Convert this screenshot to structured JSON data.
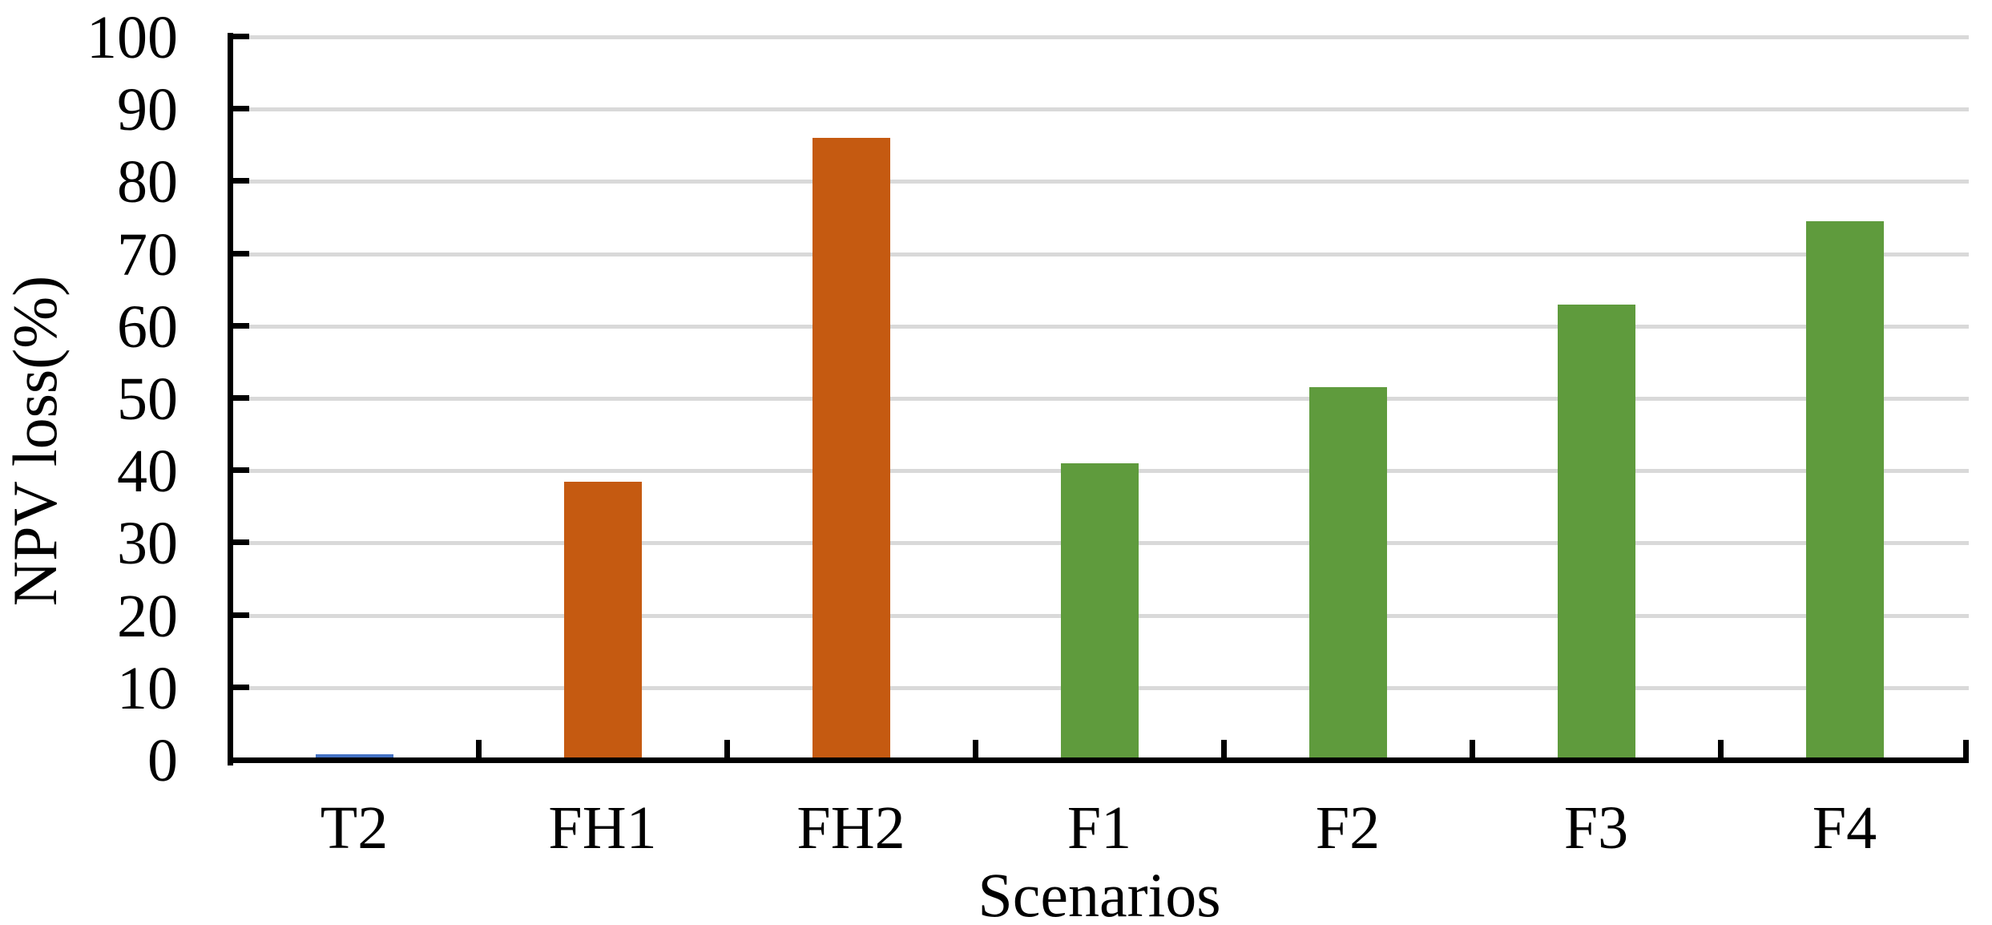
{
  "chart_data": {
    "type": "bar",
    "title": "",
    "xlabel": "Scenarios",
    "ylabel": "NPV loss(%)",
    "categories": [
      "T2",
      "FH1",
      "FH2",
      "F1",
      "F2",
      "F3",
      "F4"
    ],
    "values": [
      0.8,
      38.5,
      86,
      41,
      51.5,
      63,
      74.5
    ],
    "bar_colors": [
      "#4472c4",
      "#c55a11",
      "#c55a11",
      "#5f9b3d",
      "#5f9b3d",
      "#5f9b3d",
      "#5f9b3d"
    ],
    "series_color_legend": {
      "blue": "#4472c4",
      "orange": "#c55a11",
      "green": "#5f9b3d"
    },
    "ylim": [
      0,
      100
    ],
    "ytick_step": 10,
    "yticks": [
      0,
      10,
      20,
      30,
      40,
      50,
      60,
      70,
      80,
      90,
      100
    ],
    "grid": true,
    "gridline_color": "#d9d9d9",
    "axis_color": "#000000",
    "legend": "none"
  }
}
